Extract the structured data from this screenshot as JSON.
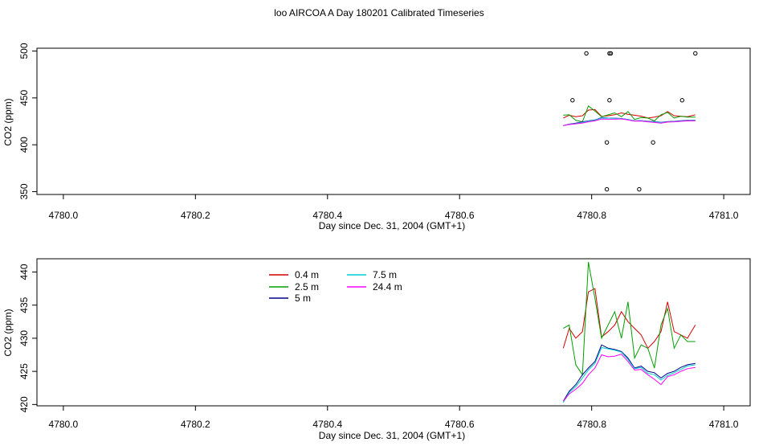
{
  "page_title": "loo AIRCOA A  Day 180201  Calibrated Timeseries",
  "colors": {
    "0.4 m": "#d40000",
    "2.5 m": "#00a000",
    "5 m": "#00008b",
    "7.5 m": "#00ced1",
    "24.4 m": "#ff00ff",
    "points": "#000000"
  },
  "chart_data": [
    {
      "type": "scatter+line",
      "title": "",
      "xlabel": "Day since Dec. 31, 2004 (GMT+1)",
      "ylabel": "CO2 (ppm)",
      "xlim": [
        4779.96,
        4781.04
      ],
      "ylim": [
        347,
        503
      ],
      "x_ticks": [
        "4780.0",
        "4780.2",
        "4780.4",
        "4780.6",
        "4780.8",
        "4781.0"
      ],
      "y_ticks": [
        "350",
        "400",
        "450",
        "500"
      ],
      "scatter_points": {
        "x": [
          4780.771,
          4780.792,
          4780.827,
          4780.827,
          4780.823,
          4780.823,
          4780.829,
          4780.872,
          4780.893,
          4780.937,
          4780.957
        ],
        "y": [
          447.5,
          497.5,
          447.5,
          497.5,
          402.5,
          352.5,
          497.5,
          352.5,
          402.5,
          447.5,
          497.5
        ]
      },
      "series": [
        {
          "name": "0.4 m",
          "x": [
            4780.757,
            4780.766,
            4780.776,
            4780.786,
            4780.795,
            4780.805,
            4780.815,
            4780.825,
            4780.835,
            4780.845,
            4780.855,
            4780.865,
            4780.875,
            4780.885,
            4780.895,
            4780.905,
            4780.915,
            4780.925,
            4780.935,
            4780.945,
            4780.957
          ],
          "y": [
            428.5,
            431.5,
            430,
            431,
            437,
            437.5,
            430.2,
            431,
            432,
            434,
            432.5,
            431.5,
            430.5,
            428.5,
            429.5,
            431,
            435.5,
            431,
            430.5,
            430,
            432
          ]
        },
        {
          "name": "2.5 m",
          "x": [
            4780.757,
            4780.766,
            4780.776,
            4780.786,
            4780.795,
            4780.805,
            4780.815,
            4780.825,
            4780.835,
            4780.845,
            4780.855,
            4780.865,
            4780.875,
            4780.885,
            4780.895,
            4780.905,
            4780.915,
            4780.925,
            4780.935,
            4780.945,
            4780.957
          ],
          "y": [
            431.5,
            432,
            426,
            424.5,
            441.5,
            436,
            430,
            432,
            434,
            430,
            435.5,
            427,
            429,
            428.5,
            425.5,
            432,
            434.5,
            428.5,
            430.5,
            429.5,
            429.5
          ]
        },
        {
          "name": "5 m",
          "x": [
            4780.757,
            4780.766,
            4780.776,
            4780.786,
            4780.795,
            4780.805,
            4780.815,
            4780.825,
            4780.835,
            4780.845,
            4780.855,
            4780.865,
            4780.875,
            4780.885,
            4780.895,
            4780.905,
            4780.915,
            4780.925,
            4780.935,
            4780.945,
            4780.957
          ],
          "y": [
            420.5,
            422,
            423,
            424.5,
            425.5,
            426.5,
            429,
            428.5,
            428.3,
            428,
            427,
            425.5,
            425.8,
            425,
            424.8,
            424,
            424.7,
            425,
            425.6,
            426,
            426.2
          ]
        },
        {
          "name": "7.5 m",
          "x": [
            4780.757,
            4780.766,
            4780.776,
            4780.786,
            4780.795,
            4780.805,
            4780.815,
            4780.825,
            4780.835,
            4780.845,
            4780.855,
            4780.865,
            4780.875,
            4780.885,
            4780.895,
            4780.905,
            4780.915,
            4780.925,
            4780.935,
            4780.945,
            4780.957
          ],
          "y": [
            420.3,
            421.8,
            422.7,
            424,
            425.2,
            426.2,
            428.6,
            428.4,
            428.2,
            427.9,
            426.8,
            425.4,
            425.6,
            424.7,
            424.5,
            423.7,
            424.4,
            424.8,
            425.3,
            425.8,
            426
          ]
        },
        {
          "name": "24.4 m",
          "x": [
            4780.757,
            4780.766,
            4780.776,
            4780.786,
            4780.795,
            4780.805,
            4780.815,
            4780.825,
            4780.835,
            4780.845,
            4780.855,
            4780.865,
            4780.875,
            4780.885,
            4780.895,
            4780.905,
            4780.915,
            4780.925,
            4780.935,
            4780.945,
            4780.957
          ],
          "y": [
            420.5,
            421.6,
            422.3,
            423.2,
            424.5,
            425.5,
            427.5,
            427.2,
            427.3,
            427.6,
            426.5,
            425.2,
            425.3,
            424.5,
            423.8,
            423,
            424.2,
            424.5,
            425,
            425.4,
            425.6
          ]
        }
      ]
    },
    {
      "type": "line",
      "title": "",
      "xlabel": "Day since Dec. 31, 2004 (GMT+1)",
      "ylabel": "CO2 (ppm)",
      "xlim": [
        4779.96,
        4781.04
      ],
      "ylim": [
        419.8,
        442.0
      ],
      "x_ticks": [
        "4780.0",
        "4780.2",
        "4780.4",
        "4780.6",
        "4780.8",
        "4781.0"
      ],
      "y_ticks": [
        "420",
        "425",
        "430",
        "435",
        "440"
      ],
      "legend": {
        "position": "top-left",
        "entries": [
          "0.4 m",
          "2.5 m",
          "5 m",
          "7.5 m",
          "24.4 m"
        ]
      },
      "series": [
        {
          "name": "0.4 m",
          "x": [
            4780.757,
            4780.766,
            4780.776,
            4780.786,
            4780.795,
            4780.805,
            4780.815,
            4780.825,
            4780.835,
            4780.845,
            4780.855,
            4780.865,
            4780.875,
            4780.885,
            4780.895,
            4780.905,
            4780.915,
            4780.925,
            4780.935,
            4780.945,
            4780.957
          ],
          "y": [
            428.5,
            431.5,
            430,
            431,
            437,
            437.5,
            430.2,
            431,
            432,
            434,
            432.5,
            431.5,
            430.5,
            428.5,
            429.5,
            431,
            435.5,
            431,
            430.5,
            430,
            432
          ]
        },
        {
          "name": "2.5 m",
          "x": [
            4780.757,
            4780.766,
            4780.776,
            4780.786,
            4780.795,
            4780.805,
            4780.815,
            4780.825,
            4780.835,
            4780.845,
            4780.855,
            4780.865,
            4780.875,
            4780.885,
            4780.895,
            4780.905,
            4780.915,
            4780.925,
            4780.935,
            4780.945,
            4780.957
          ],
          "y": [
            431.5,
            432,
            426,
            424.5,
            441.5,
            436,
            430,
            432,
            434,
            430,
            435.5,
            427,
            429,
            428.5,
            425.5,
            432,
            434.5,
            428.5,
            430.5,
            429.5,
            429.5
          ]
        },
        {
          "name": "5 m",
          "x": [
            4780.757,
            4780.766,
            4780.776,
            4780.786,
            4780.795,
            4780.805,
            4780.815,
            4780.825,
            4780.835,
            4780.845,
            4780.855,
            4780.865,
            4780.875,
            4780.885,
            4780.895,
            4780.905,
            4780.915,
            4780.925,
            4780.935,
            4780.945,
            4780.957
          ],
          "y": [
            420.5,
            422,
            423,
            424.5,
            425.5,
            426.5,
            429,
            428.5,
            428.3,
            428,
            427,
            425.5,
            425.8,
            425,
            424.8,
            424,
            424.7,
            425,
            425.6,
            426,
            426.2
          ]
        },
        {
          "name": "7.5 m",
          "x": [
            4780.757,
            4780.766,
            4780.776,
            4780.786,
            4780.795,
            4780.805,
            4780.815,
            4780.825,
            4780.835,
            4780.845,
            4780.855,
            4780.865,
            4780.875,
            4780.885,
            4780.895,
            4780.905,
            4780.915,
            4780.925,
            4780.935,
            4780.945,
            4780.957
          ],
          "y": [
            420.3,
            421.8,
            422.7,
            424,
            425.2,
            426.2,
            428.6,
            428.4,
            428.2,
            427.9,
            426.8,
            425.4,
            425.6,
            424.7,
            424.5,
            423.7,
            424.4,
            424.8,
            425.3,
            425.8,
            426
          ]
        },
        {
          "name": "24.4 m",
          "x": [
            4780.757,
            4780.766,
            4780.776,
            4780.786,
            4780.795,
            4780.805,
            4780.815,
            4780.825,
            4780.835,
            4780.845,
            4780.855,
            4780.865,
            4780.875,
            4780.885,
            4780.895,
            4780.905,
            4780.915,
            4780.925,
            4780.935,
            4780.945,
            4780.957
          ],
          "y": [
            420.5,
            421.6,
            422.3,
            423.2,
            424.5,
            425.5,
            427.5,
            427.2,
            427.3,
            427.6,
            426.5,
            425.2,
            425.3,
            424.5,
            423.8,
            423,
            424.2,
            424.5,
            425,
            425.4,
            425.6
          ]
        }
      ]
    }
  ]
}
